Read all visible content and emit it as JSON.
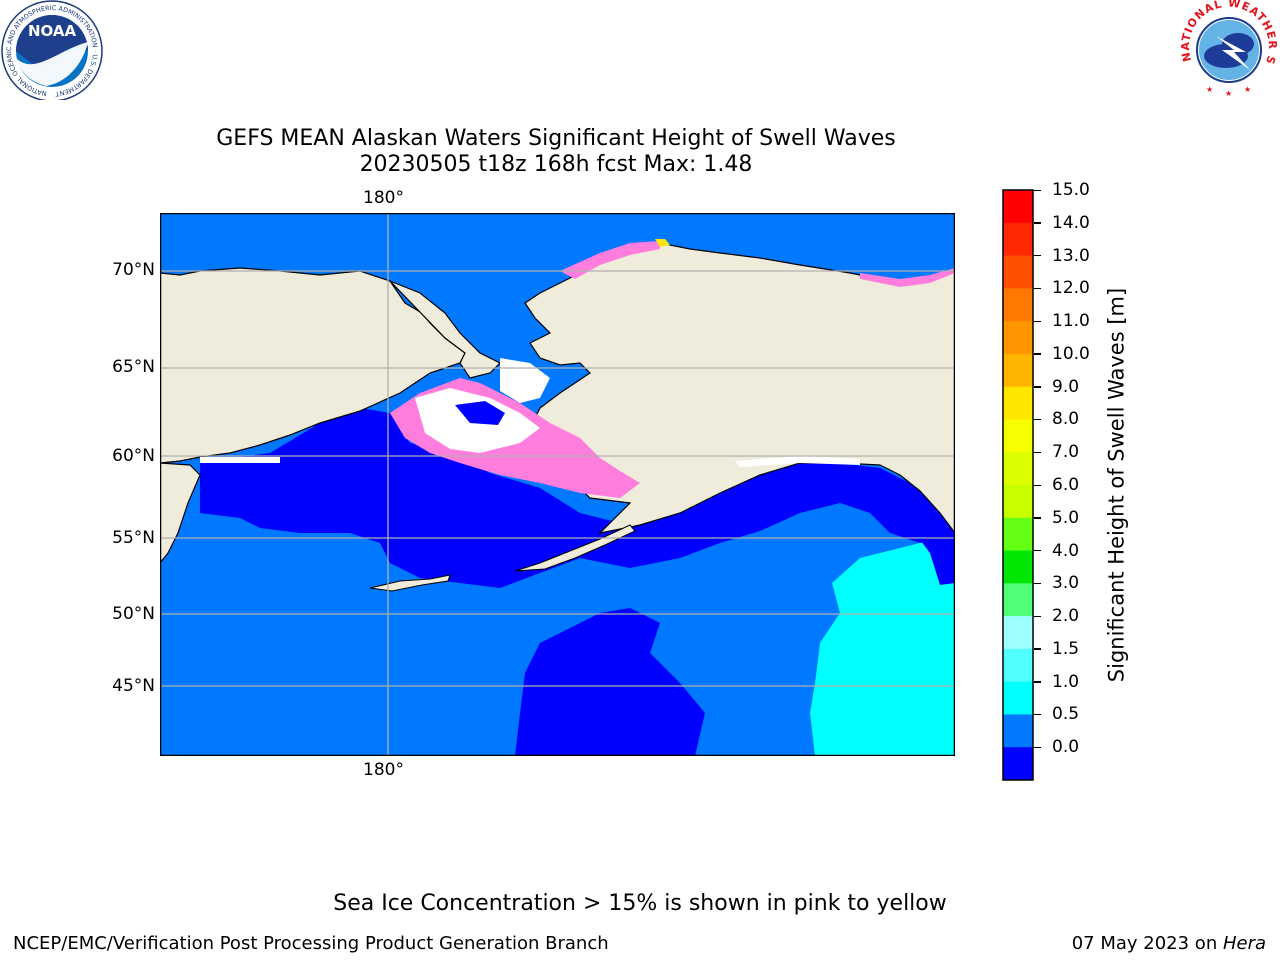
{
  "title_line1": "GEFS MEAN Alaskan Waters Significant Height of Swell Waves",
  "title_line2": "20230505 t18z 168h fcst   Max: 1.48",
  "top_lon_label": "180°",
  "bottom_lon_label": "180°",
  "lat_labels": [
    "70°N",
    "65°N",
    "60°N",
    "55°N",
    "50°N",
    "45°N"
  ],
  "colorbar": {
    "label": "Significant Height of Swell Waves [m]",
    "ticks": [
      "15.0",
      "14.0",
      "13.0",
      "12.0",
      "11.0",
      "10.0",
      "9.0",
      "8.0",
      "7.0",
      "6.0",
      "5.0",
      "4.0",
      "3.0",
      "2.0",
      "1.5",
      "1.0",
      "0.5",
      "0.0"
    ],
    "colors_top_to_bottom": [
      "#ff0000",
      "#ff2800",
      "#ff5000",
      "#ff7800",
      "#ff9600",
      "#ffb400",
      "#ffe600",
      "#f5ff00",
      "#dcff00",
      "#c8ff00",
      "#64ff14",
      "#00e600",
      "#50ff78",
      "#a0ffff",
      "#50ffff",
      "#00ffff",
      "#0078ff",
      "#0000ff"
    ]
  },
  "map_colors": {
    "land": "#efecdc",
    "swell_low": "#0000ff",
    "swell_mid": "#0078ff",
    "swell_high": "#00ffff",
    "ice_pink": "#ff7ddc",
    "ice_magenta": "#e13ce1",
    "ice_yellow": "#ffe600",
    "ice_white": "#ffffff"
  },
  "note": "Sea Ice Concentration > 15% is shown in pink to yellow",
  "footer_left": "NCEP/EMC/Verification Post Processing Product Generation Branch",
  "footer_right_date": "07 May 2023 on ",
  "footer_right_host": "Hera",
  "logos": {
    "noaa_text": "NOAA",
    "noaa_ring_text": "NATIONAL OCEANIC AND ATMOSPHERIC ADMINISTRATION · U.S. DEPARTMENT OF COMMERCE",
    "nws_ring_text": "NATIONAL WEATHER SERVICE"
  }
}
